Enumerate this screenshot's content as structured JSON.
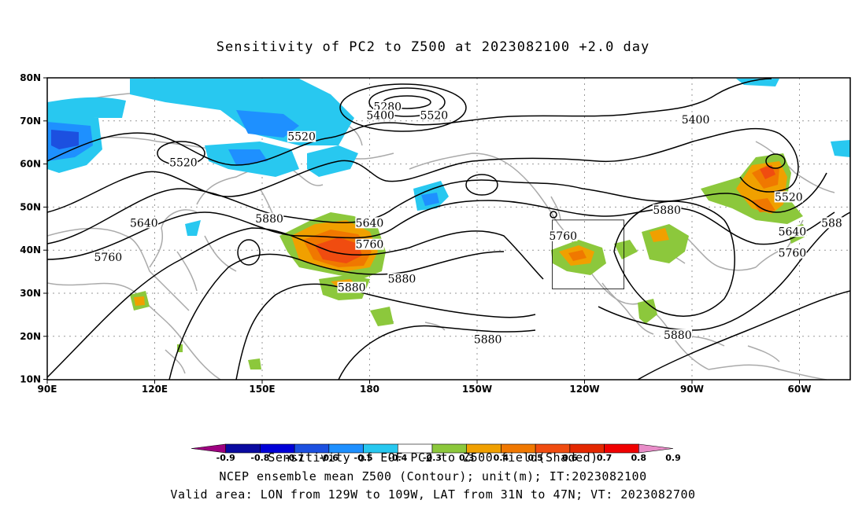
{
  "title": "Sensitivity of PC2 to Z500 at 2023082100 +2.0 day",
  "axes": {
    "lat_ticks": [
      "80N",
      "70N",
      "60N",
      "50N",
      "40N",
      "30N",
      "20N",
      "10N"
    ],
    "lon_ticks": [
      "90E",
      "120E",
      "150E",
      "180",
      "150W",
      "120W",
      "90W",
      "60W"
    ]
  },
  "contour_labels": [
    {
      "text": "5280",
      "lon": -175,
      "lat": 73
    },
    {
      "text": "5400",
      "lon": -177,
      "lat": 71
    },
    {
      "text": "5520",
      "lon": -162,
      "lat": 71
    },
    {
      "text": "5520",
      "lon": 161,
      "lat": 66
    },
    {
      "text": "5520",
      "lon": 128,
      "lat": 60
    },
    {
      "text": "5400",
      "lon": -89,
      "lat": 70
    },
    {
      "text": "5520",
      "lon": -63,
      "lat": 52
    },
    {
      "text": "5640",
      "lon": -62,
      "lat": 44
    },
    {
      "text": "5640",
      "lon": 117,
      "lat": 46
    },
    {
      "text": "5640",
      "lon": 180,
      "lat": 46
    },
    {
      "text": "5760",
      "lon": 180,
      "lat": 41
    },
    {
      "text": "5760",
      "lon": 107,
      "lat": 38
    },
    {
      "text": "5760",
      "lon": -126,
      "lat": 43
    },
    {
      "text": "5760",
      "lon": -62,
      "lat": 39
    },
    {
      "text": "5880",
      "lon": 152,
      "lat": 47
    },
    {
      "text": "5880",
      "lon": -171,
      "lat": 33
    },
    {
      "text": "5880",
      "lon": 175,
      "lat": 31
    },
    {
      "text": "5880",
      "lon": -97,
      "lat": 49
    },
    {
      "text": "5880",
      "lon": -147,
      "lat": 19
    },
    {
      "text": "5880",
      "lon": -94,
      "lat": 20
    },
    {
      "text": "588",
      "lon": -51,
      "lat": 46
    }
  ],
  "valid_box": {
    "lon_min": -129,
    "lon_max": -109,
    "lat_min": 31,
    "lat_max": 47
  },
  "colorbar": {
    "colors": [
      "#9e0080",
      "#0a0aa0",
      "#0000d8",
      "#1c50e0",
      "#1e90ff",
      "#28c8f0",
      "#ffffff",
      "#8cc83c",
      "#f0a000",
      "#f07800",
      "#f04c10",
      "#e42800",
      "#f00000",
      "#e88cc8"
    ],
    "labels": [
      "-0.9",
      "-0.8",
      "-0.7",
      "-0.6",
      "-0.5",
      "-0.4",
      "-0.3",
      "0.3",
      "0.4",
      "0.5",
      "0.6",
      "0.7",
      "0.8",
      "0.9"
    ]
  },
  "captions": [
    "Sensitivity of EOF PC2 to Z500 field(Shaded)",
    "NCEP ensemble mean Z500 (Contour); unit(m); IT:2023082100",
    "Valid area: LON from 129W to 109W, LAT from 31N to 47N; VT: 2023082700"
  ]
}
